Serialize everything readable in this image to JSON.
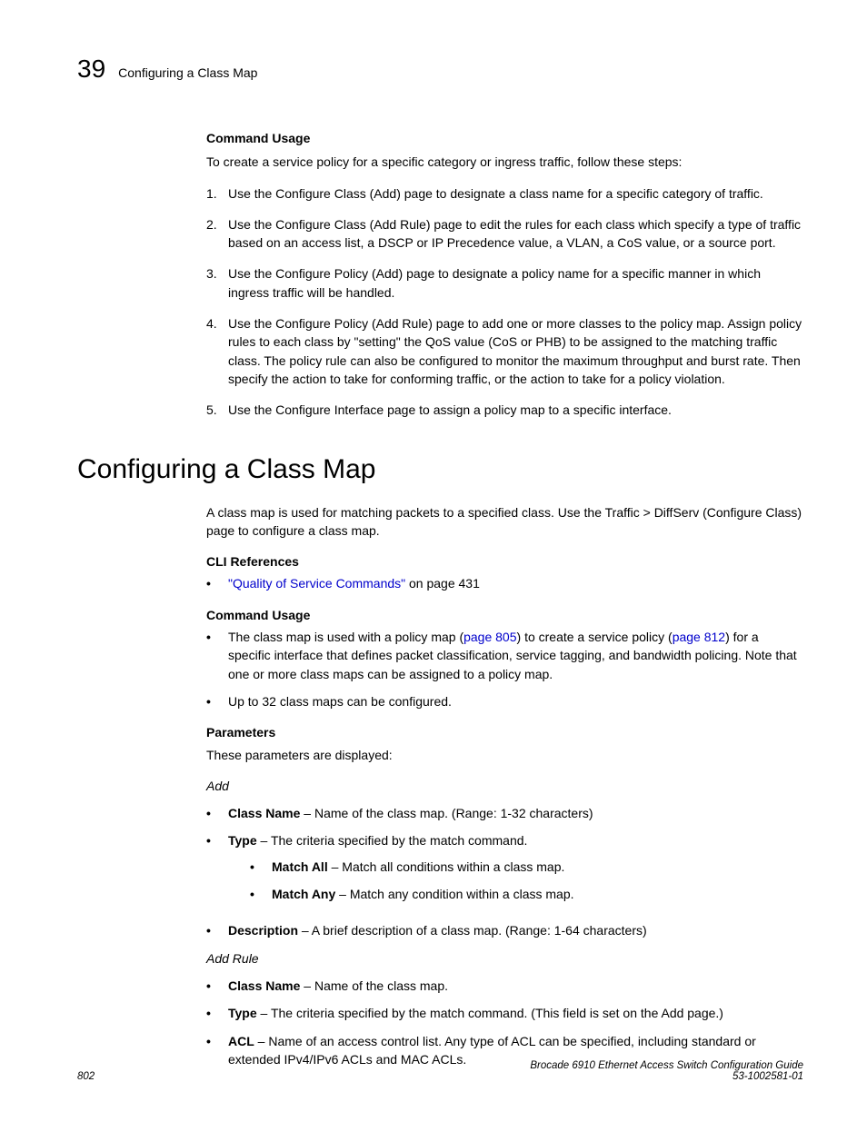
{
  "header": {
    "chapter_number": "39",
    "title": "Configuring a Class Map"
  },
  "section1": {
    "cmd_usage_label": "Command Usage",
    "intro": "To create a service policy for a specific category or ingress traffic, follow these steps:",
    "steps": [
      "Use the Configure Class (Add) page to designate a class name for a specific category of traffic.",
      "Use the Configure Class (Add Rule) page to edit the rules for each class which specify a type of traffic based on an access list, a DSCP or IP Precedence value, a VLAN, a CoS value, or a source port.",
      "Use the Configure Policy (Add) page to designate a policy name for a specific manner in which ingress traffic will be handled.",
      "Use the Configure Policy (Add Rule) page to add one or more classes to the policy map. Assign policy rules to each class by \"setting\" the QoS value (CoS or PHB) to be assigned to the matching traffic class. The policy rule can also be configured to monitor the maximum throughput and burst rate. Then specify the action to take for conforming traffic, or the action to take for a policy violation.",
      "Use the Configure Interface page to assign a policy map to a specific interface."
    ]
  },
  "heading": "Configuring a Class Map",
  "section2": {
    "intro": "A class map is used for matching packets to a specified class. Use the Traffic > DiffServ (Configure Class) page to configure a class map.",
    "cli_label": "CLI References",
    "cli_link_text": "\"Quality of Service Commands\"",
    "cli_link_suffix": " on page 431",
    "cmd_usage_label": "Command Usage",
    "usage_b1_pre": "The class map is used with a policy map (",
    "usage_b1_link1": "page 805",
    "usage_b1_mid": ") to create a service policy (",
    "usage_b1_link2": "page 812",
    "usage_b1_post": ") for a specific interface that defines packet classification, service tagging, and bandwidth policing. Note that one or more class maps can be assigned to a policy map.",
    "usage_b2": "Up to 32 class maps can be configured.",
    "params_label": "Parameters",
    "params_intro": "These parameters are displayed:",
    "add_label": "Add",
    "add_items": {
      "class_name_label": "Class Name",
      "class_name_text": " – Name of the class map. (Range: 1-32 characters)",
      "type_label": "Type",
      "type_text": " – The criteria specified by the match command.",
      "match_all_label": "Match All",
      "match_all_text": " – Match all conditions within a class map.",
      "match_any_label": "Match Any",
      "match_any_text": " – Match any condition within a class map.",
      "desc_label": "Description",
      "desc_text": "  – A brief description of a class map. (Range: 1-64 characters)"
    },
    "addrule_label": "Add Rule",
    "addrule_items": {
      "class_name_label": "Class Name",
      "class_name_text": " – Name of the class map.",
      "type_label": "Type",
      "type_text": " – The criteria specified by the match command. (This field is set on the Add page.)",
      "acl_label": "ACL",
      "acl_text": " – Name of an access control list. Any type of ACL can be specified, including standard or extended IPv4/IPv6 ACLs and MAC ACLs."
    }
  },
  "footer": {
    "page_number": "802",
    "doc_title": "Brocade 6910 Ethernet Access Switch Configuration Guide",
    "doc_id": "53-1002581-01"
  }
}
